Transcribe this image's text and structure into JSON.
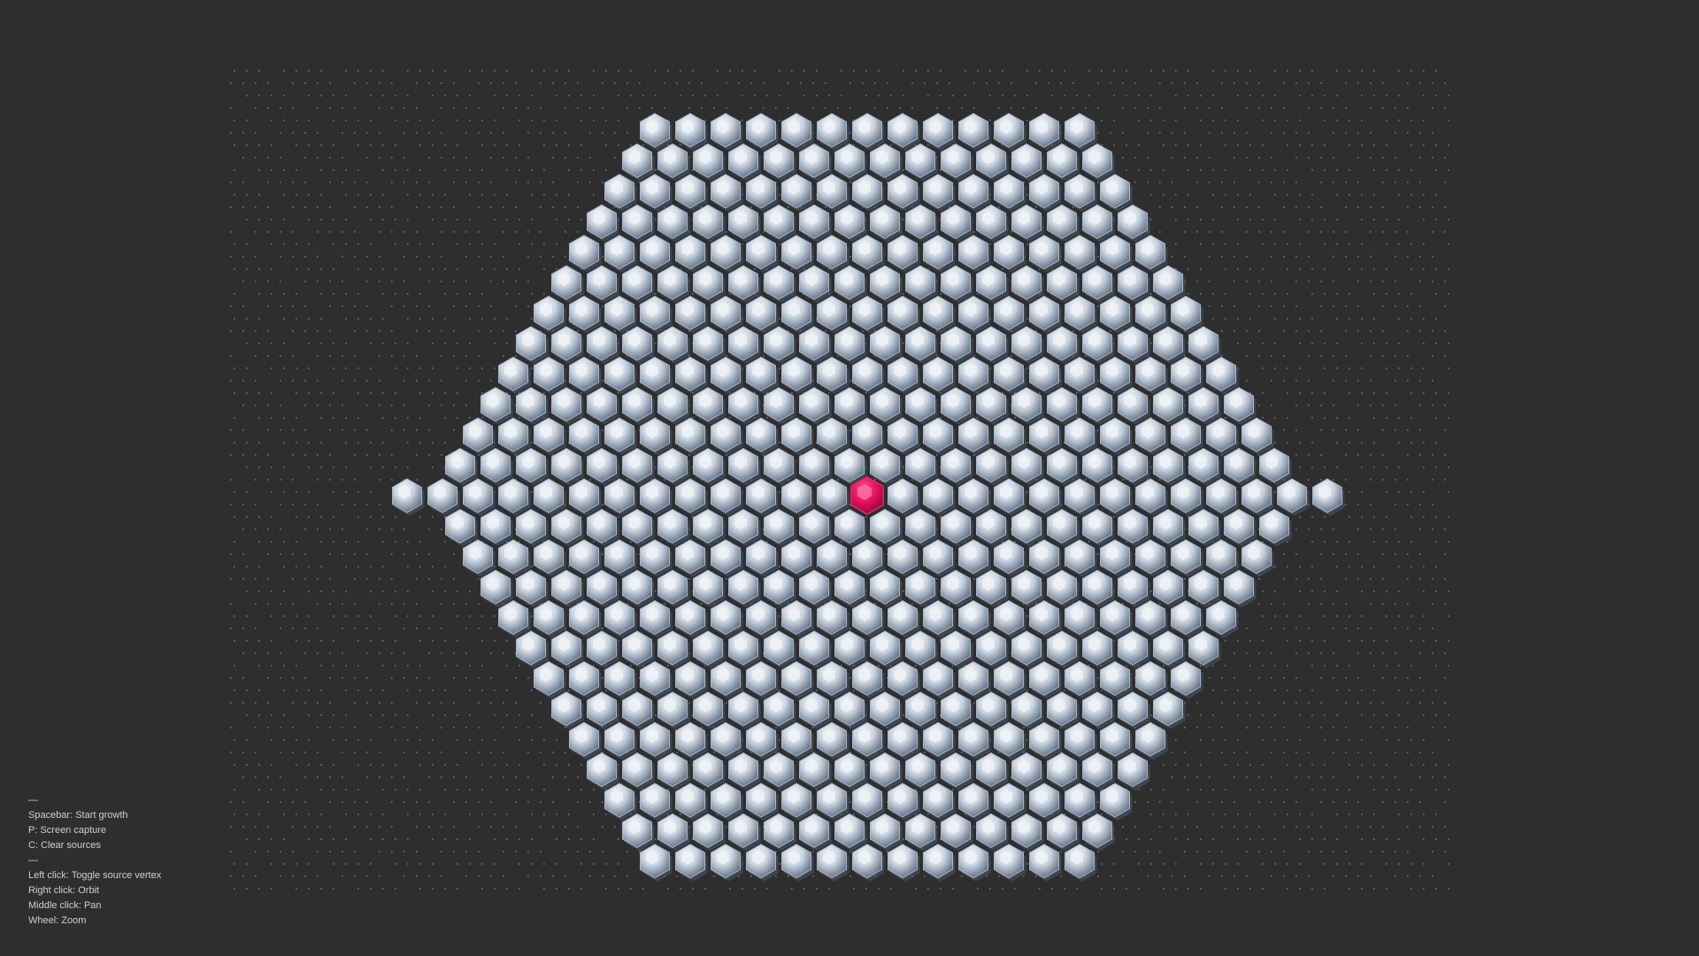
{
  "colors": {
    "background": "#2e2e2e",
    "cell_light": "#eef2f6",
    "cell_mid": "#a9b6c6",
    "cell_dark": "#4b5a6e",
    "source_vertex": "#e0105a",
    "grid_dots": "#bfbfbf",
    "help_text": "#cfcfcf"
  },
  "scene": {
    "cell_shape": "truncated-octahedron",
    "source_vertex_count": 1
  },
  "help": {
    "separator_1": "—",
    "spacebar": "Spacebar: Start growth",
    "capture": "P: Screen capture",
    "clear": "C: Clear sources",
    "separator_2": "—",
    "left_click": "Left click: Toggle source vertex",
    "right_click": "Right click: Orbit",
    "middle_click": "Middle click: Pan",
    "wheel": "Wheel: Zoom"
  }
}
